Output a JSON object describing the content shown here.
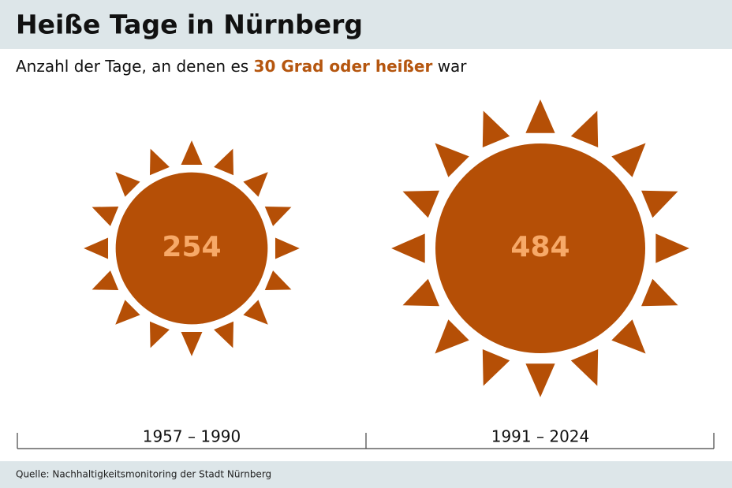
{
  "chart_data": {
    "type": "sun",
    "title": "Heiße Tage in Nürnberg",
    "subtitle_parts": [
      "Anzahl der Tage, an denen es",
      "30 Grad oder heißer",
      "war"
    ],
    "categories": [
      "1957 – 1990",
      "1991 – 2024"
    ],
    "values": [
      254,
      484
    ],
    "color": "#b54f06",
    "label_color": "#f7a968",
    "highlight_color": "#b5560f",
    "source": "Quelle: Nachhaltigkeitsmonitoring der Stadt Nürnberg"
  }
}
